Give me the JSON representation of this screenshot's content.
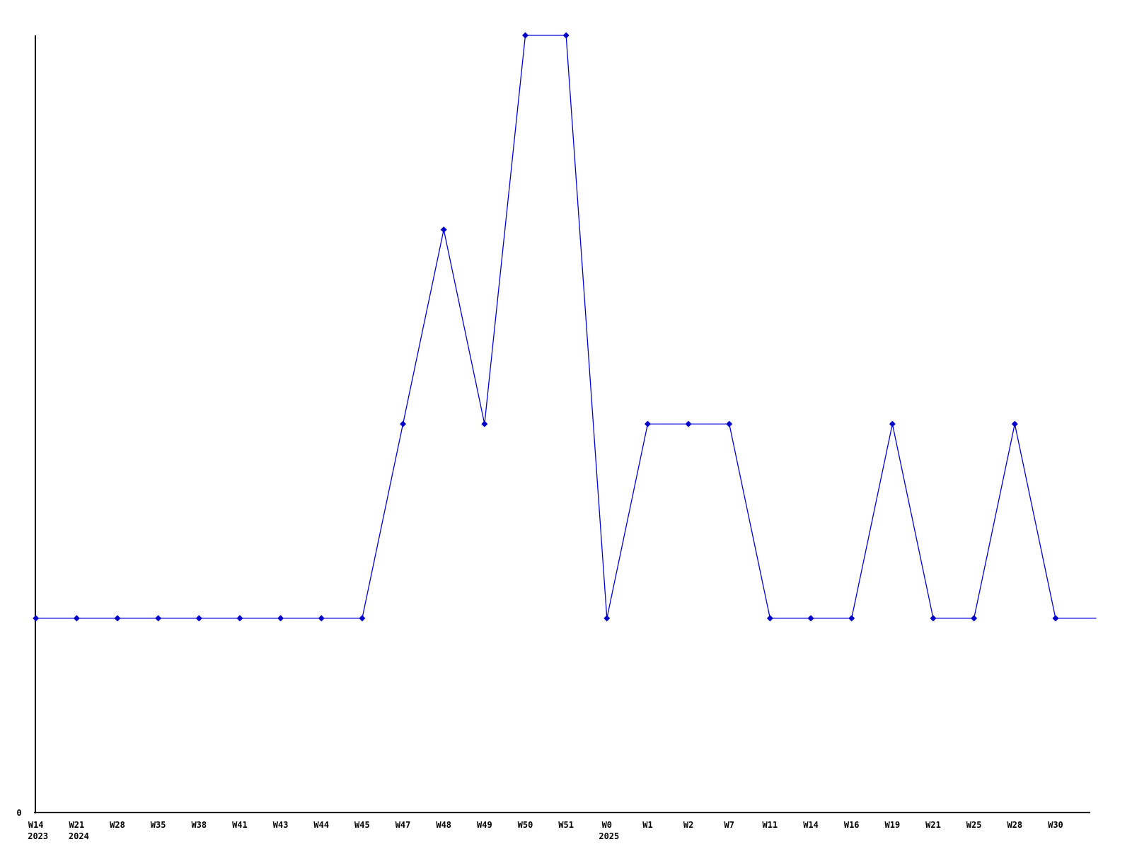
{
  "chart_data": {
    "type": "line",
    "title": "",
    "xlabel": "",
    "ylabel": "",
    "grid": false,
    "legend": null,
    "background_color": "#ffffff",
    "axis_color": "#000000",
    "line_color": "#0000dd",
    "marker_color": "#0000cc",
    "marker_shape": "diamond",
    "y_axis": {
      "min": 0,
      "max": 4,
      "tick_labels": [
        "0"
      ],
      "zero_label": "0"
    },
    "x_categories": [
      {
        "week": "W14",
        "year": "2023"
      },
      {
        "week": "W21",
        "year": "2024"
      },
      {
        "week": "W28",
        "year": ""
      },
      {
        "week": "W35",
        "year": ""
      },
      {
        "week": "W38",
        "year": ""
      },
      {
        "week": "W41",
        "year": ""
      },
      {
        "week": "W43",
        "year": ""
      },
      {
        "week": "W44",
        "year": ""
      },
      {
        "week": "W45",
        "year": ""
      },
      {
        "week": "W47",
        "year": ""
      },
      {
        "week": "W48",
        "year": ""
      },
      {
        "week": "W49",
        "year": ""
      },
      {
        "week": "W50",
        "year": ""
      },
      {
        "week": "W51",
        "year": ""
      },
      {
        "week": "W0",
        "year": "2025"
      },
      {
        "week": "W1",
        "year": ""
      },
      {
        "week": "W2",
        "year": ""
      },
      {
        "week": "W7",
        "year": ""
      },
      {
        "week": "W11",
        "year": ""
      },
      {
        "week": "W14",
        "year": ""
      },
      {
        "week": "W16",
        "year": ""
      },
      {
        "week": "W19",
        "year": ""
      },
      {
        "week": "W21",
        "year": ""
      },
      {
        "week": "W25",
        "year": ""
      },
      {
        "week": "W28",
        "year": ""
      },
      {
        "week": "W30",
        "year": ""
      }
    ],
    "values": [
      1,
      1,
      1,
      1,
      1,
      1,
      1,
      1,
      1,
      2,
      3,
      2,
      4,
      4,
      1,
      2,
      2,
      2,
      1,
      1,
      1,
      2,
      1,
      1,
      2,
      1
    ],
    "trailing_value": 1
  }
}
